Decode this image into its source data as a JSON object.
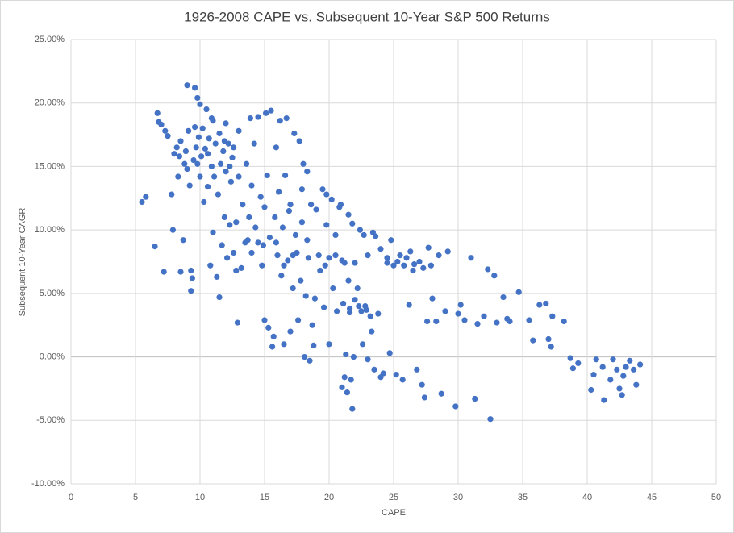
{
  "chart_data": {
    "type": "scatter",
    "title": "1926-2008 CAPE vs. Subsequent 10-Year S&P 500 Returns",
    "x_label": "CAPE",
    "y_label": "Subsequent 10-Year CAGR",
    "color": "#4472c4",
    "grid": true,
    "xlim": [
      0,
      50
    ],
    "xticks": [
      0,
      5,
      10,
      15,
      20,
      25,
      30,
      35,
      40,
      45,
      50
    ],
    "ylim": [
      -10,
      25
    ],
    "yticks": [
      {
        "value": -10,
        "label": "-10.00%"
      },
      {
        "value": -5,
        "label": "-5.00%"
      },
      {
        "value": 0,
        "label": "0.00%"
      },
      {
        "value": 5,
        "label": "5.00%"
      },
      {
        "value": 10,
        "label": "10.00%"
      },
      {
        "value": 15,
        "label": "15.00%"
      },
      {
        "value": 20,
        "label": "20.00%"
      },
      {
        "value": 25,
        "label": "25.00%"
      }
    ],
    "x": [
      5.5,
      5.8,
      6.5,
      6.7,
      6.8,
      7,
      7.2,
      7.3,
      7.5,
      7.8,
      7.9,
      8,
      8.2,
      8.3,
      8.5,
      8.5,
      8.7,
      8.8,
      8.9,
      9,
      9,
      9.1,
      9.2,
      9.3,
      9.3,
      9.4,
      9.5,
      9.6,
      9.7,
      9.8,
      9.9,
      10,
      10,
      10.1,
      10.2,
      10.3,
      10.4,
      10.5,
      10.6,
      10.7,
      10.8,
      10.9,
      11,
      11,
      11.1,
      11.2,
      11.3,
      11.4,
      11.5,
      11.5,
      11.6,
      11.7,
      11.8,
      11.9,
      12,
      12,
      12.1,
      12.2,
      12.3,
      12.4,
      12.5,
      12.6,
      12.8,
      12.9,
      13,
      13,
      13.2,
      13.3,
      13.5,
      13.6,
      13.8,
      13.9,
      14,
      14,
      14.2,
      14.3,
      14.5,
      14.5,
      14.7,
      14.8,
      15,
      15,
      15.1,
      15.2,
      15.3,
      15.4,
      15.5,
      15.6,
      15.7,
      15.8,
      15.9,
      16,
      16.1,
      16.2,
      16.3,
      16.4,
      16.5,
      16.6,
      16.7,
      16.8,
      17,
      17,
      17.2,
      17.3,
      17.4,
      17.5,
      17.6,
      17.7,
      17.8,
      17.9,
      18,
      18.1,
      18.2,
      18.3,
      18.4,
      18.5,
      18.6,
      18.7,
      18.8,
      18.9,
      19,
      19.2,
      19.3,
      19.5,
      19.6,
      19.8,
      20,
      20,
      20.2,
      20.3,
      20.5,
      20.6,
      20.8,
      21,
      21,
      21.1,
      21.2,
      21.3,
      21.4,
      21.5,
      21.5,
      21.6,
      21.7,
      21.8,
      21.9,
      22,
      22,
      22.2,
      22.4,
      22.5,
      22.6,
      22.8,
      23,
      23,
      23.2,
      23.3,
      23.5,
      23.6,
      23.8,
      24,
      24,
      24.2,
      24.5,
      24.7,
      24.8,
      25,
      25.2,
      25.5,
      25.7,
      26,
      26.2,
      26.5,
      26.8,
      27,
      27.2,
      27.4,
      27.6,
      27.7,
      28,
      28.3,
      28.5,
      28.7,
      29,
      29.2,
      29.8,
      30,
      30.2,
      30.5,
      31,
      31.3,
      31.5,
      32,
      32.3,
      32.5,
      32.8,
      33,
      33.5,
      33.8,
      34,
      34.7,
      35.5,
      35.8,
      36.3,
      36.8,
      37,
      37.2,
      37.3,
      38.2,
      38.7,
      38.9,
      39.3,
      40.3,
      40.5,
      40.7,
      41.2,
      41.3,
      41.8,
      42,
      42.3,
      42.5,
      42.7,
      42.8,
      43,
      43.3,
      43.6,
      43.8,
      44.1,
      24.5,
      25.3,
      25.8,
      26.3,
      26.6,
      27.3,
      27.9,
      22.7,
      23.4,
      21.8,
      20.9,
      19.8,
      17.9,
      16.9,
      18.3,
      17.2,
      16.5,
      15.9,
      14.9,
      13.7,
      12.8,
      19.7,
      20.5,
      21.2,
      22.3,
      21.6,
      22.9,
      12.6,
      11.9,
      10.6,
      9.8,
      8.4,
      9.6,
      10.9,
      12.3
    ],
    "values": [
      12.2,
      12.6,
      8.7,
      19.2,
      18.5,
      18.3,
      6.7,
      17.8,
      17.4,
      12.8,
      10,
      16,
      16.5,
      14.2,
      17,
      6.7,
      9.2,
      15.2,
      16.2,
      21.4,
      14.8,
      17.8,
      13.5,
      6.8,
      5.2,
      6.2,
      15.5,
      21.2,
      16.5,
      20.4,
      17.3,
      14.2,
      19.9,
      15.8,
      18,
      12.2,
      16.4,
      19.5,
      13.4,
      17.2,
      7.2,
      15,
      18.6,
      9.8,
      14.2,
      16.8,
      6.3,
      12.8,
      17.6,
      4.7,
      15.2,
      8.8,
      16.2,
      11,
      14.6,
      18.4,
      7.8,
      16.8,
      10.4,
      13.8,
      15.7,
      8.2,
      10.6,
      2.7,
      14.2,
      17.8,
      7,
      12,
      9,
      15.2,
      11,
      18.8,
      8.2,
      13.5,
      16.8,
      10.2,
      9,
      18.9,
      12.6,
      7.2,
      11.8,
      2.9,
      19.2,
      14.3,
      2.3,
      9.4,
      19.4,
      0.8,
      1.6,
      11,
      16.5,
      8,
      13,
      18.6,
      6.4,
      10.2,
      1.0,
      14.3,
      18.8,
      7.6,
      2.0,
      12,
      5.4,
      17.6,
      9.6,
      8.2,
      2.9,
      17,
      6,
      13.2,
      15.2,
      0.0,
      4.8,
      14.6,
      7.8,
      -0.3,
      12,
      2.5,
      0.9,
      4.6,
      11.6,
      8,
      6.8,
      13.2,
      3.9,
      10.4,
      1,
      7.8,
      12.4,
      5.4,
      9.6,
      3.6,
      11.8,
      7.6,
      -2.4,
      4.2,
      -1.6,
      0.2,
      -2.8,
      6,
      11.2,
      3.8,
      -1.8,
      -4.1,
      0,
      7.4,
      4.5,
      5.4,
      10,
      3.6,
      1.0,
      4,
      -0.2,
      8,
      3.2,
      2.0,
      -1.0,
      9.5,
      3.4,
      -1.6,
      8.5,
      -1.3,
      7.4,
      0.3,
      9.2,
      7.2,
      -1.4,
      8,
      -1.8,
      7.8,
      4.1,
      6.8,
      -1,
      7.5,
      -2.2,
      -3.2,
      2.8,
      8.6,
      4.6,
      2.8,
      8,
      -2.9,
      3.6,
      8.3,
      -3.9,
      3.4,
      4.1,
      2.9,
      7.8,
      -3.3,
      2.6,
      3.2,
      6.9,
      -4.9,
      6.4,
      2.7,
      4.7,
      3,
      2.8,
      5.1,
      2.9,
      1.3,
      4.1,
      4.2,
      1.4,
      0.8,
      3.2,
      2.8,
      -0.1,
      -0.9,
      -0.5,
      -2.6,
      -1.4,
      -0.2,
      -0.8,
      -3.4,
      -1.8,
      -0.2,
      -1.0,
      -2.5,
      -3,
      -1.5,
      -0.8,
      -0.3,
      -1.0,
      -2.2,
      -0.6,
      7.8,
      7.5,
      7.2,
      8.3,
      7.3,
      7.0,
      7.2,
      9.6,
      9.8,
      10.5,
      12,
      12.8,
      10.6,
      11.5,
      9.2,
      8.0,
      7.2,
      9.0,
      8.8,
      9.2,
      6.8,
      7.2,
      8.0,
      7.4,
      4.0,
      3.5,
      3.7,
      16.5,
      17,
      16,
      15.2,
      15.8,
      18.1,
      18.8,
      15.0
    ]
  }
}
